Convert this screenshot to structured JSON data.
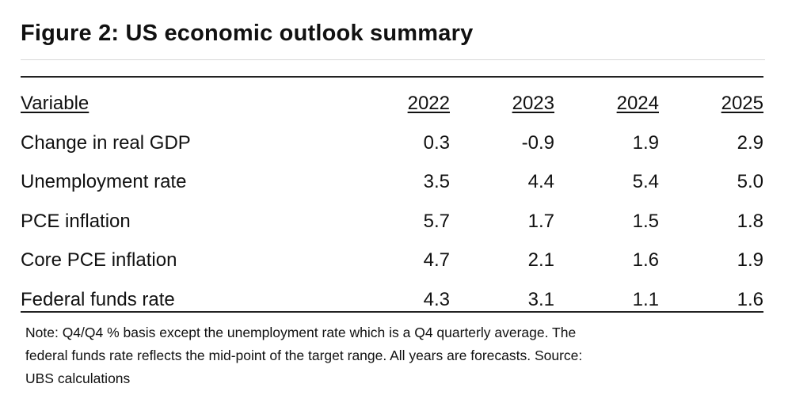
{
  "title": "Figure 2: US economic outlook summary",
  "table": {
    "header": {
      "variable": "Variable",
      "years": [
        "2022",
        "2023",
        "2024",
        "2025"
      ]
    },
    "rows": [
      {
        "label": "Change in real GDP",
        "values": [
          "0.3",
          "-0.9",
          "1.9",
          "2.9"
        ]
      },
      {
        "label": "Unemployment rate",
        "values": [
          "3.5",
          "4.4",
          "5.4",
          "5.0"
        ]
      },
      {
        "label": "PCE inflation",
        "values": [
          "5.7",
          "1.7",
          "1.5",
          "1.8"
        ]
      },
      {
        "label": "Core PCE inflation",
        "values": [
          "4.7",
          "2.1",
          "1.6",
          "1.9"
        ]
      },
      {
        "label": "Federal funds rate",
        "values": [
          "4.3",
          "3.1",
          "1.1",
          "1.6"
        ]
      }
    ]
  },
  "note": {
    "line1": "Note: Q4/Q4 % basis except the unemployment rate which is a Q4 quarterly average. The",
    "line2": "federal funds rate reflects the mid-point of the target range. All years are forecasts. Source:",
    "line3": "UBS calculations"
  }
}
